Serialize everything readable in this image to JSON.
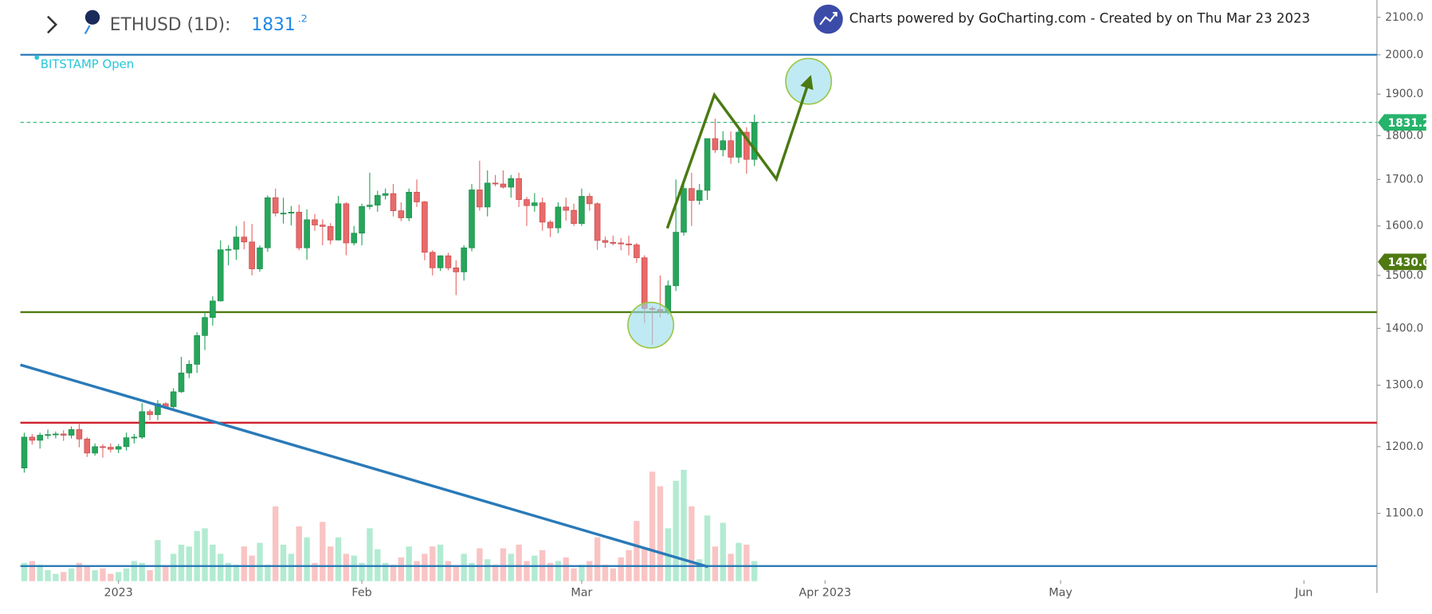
{
  "chart_data": {
    "type": "candlestick",
    "title": "ETHUSD (1D):",
    "price_text": "1831",
    "price_decimals": ".2",
    "exchange_label": "BITSTAMP Open",
    "attribution": "Charts powered by GoCharting.com - Created by  on Thu Mar 23 2023",
    "log_scale": true,
    "ylim": [
      1007,
      2148
    ],
    "yticks": [
      {
        "value": 2100,
        "label": "2100.0"
      },
      {
        "value": 2000,
        "label": "2000.0"
      },
      {
        "value": 1900,
        "label": "1900.0"
      },
      {
        "value": 1800,
        "label": "1800.0"
      },
      {
        "value": 1700,
        "label": "1700.0"
      },
      {
        "value": 1600,
        "label": "1600.0"
      },
      {
        "value": 1500,
        "label": "1500.0"
      },
      {
        "value": 1400,
        "label": "1400.0"
      },
      {
        "value": 1300,
        "label": "1300.0"
      },
      {
        "value": 1200,
        "label": "1200.0"
      },
      {
        "value": 1100,
        "label": "1100.0"
      }
    ],
    "xlim": [
      -0.5,
      172.3
    ],
    "xticks": [
      {
        "value": 12,
        "label": "2023"
      },
      {
        "value": 43,
        "label": "Feb"
      },
      {
        "value": 71,
        "label": "Mar"
      },
      {
        "value": 102,
        "label": "Apr 2023"
      },
      {
        "value": 132,
        "label": "May"
      },
      {
        "value": 163,
        "label": "Jun"
      }
    ],
    "colors": {
      "up": "#26a65b",
      "down": "#e86a6a",
      "up_volume": "#b2ebd2",
      "down_volume": "#f9c4c4"
    },
    "open": [
      1167,
      1215,
      1210,
      1218,
      1219,
      1220,
      1218,
      1227,
      1212,
      1190,
      1200,
      1199,
      1196,
      1200,
      1214,
      1215,
      1256,
      1251,
      1269,
      1264,
      1289,
      1321,
      1336,
      1387,
      1420,
      1451,
      1551,
      1552,
      1577,
      1567,
      1513,
      1555,
      1660,
      1627,
      1627,
      1629,
      1555,
      1613,
      1602,
      1599,
      1571,
      1647,
      1565,
      1585,
      1641,
      1644,
      1665,
      1669,
      1632,
      1617,
      1672,
      1651,
      1546,
      1515,
      1539,
      1515,
      1507,
      1555,
      1677,
      1640,
      1692,
      1690,
      1683,
      1702,
      1656,
      1643,
      1649,
      1608,
      1596,
      1640,
      1633,
      1605,
      1663,
      1647,
      1570,
      1566,
      1565,
      1563,
      1561,
      1535,
      1437,
      1435,
      1432,
      1480,
      1587,
      1680,
      1654,
      1676,
      1793,
      1767,
      1788,
      1750,
      1808,
      1745
    ],
    "high": [
      1222,
      1220,
      1222,
      1227,
      1224,
      1226,
      1232,
      1237,
      1215,
      1205,
      1204,
      1205,
      1204,
      1222,
      1220,
      1270,
      1260,
      1275,
      1272,
      1295,
      1349,
      1343,
      1393,
      1430,
      1460,
      1570,
      1560,
      1600,
      1610,
      1604,
      1560,
      1665,
      1680,
      1660,
      1642,
      1645,
      1635,
      1625,
      1614,
      1606,
      1664,
      1650,
      1600,
      1647,
      1715,
      1675,
      1680,
      1690,
      1650,
      1680,
      1700,
      1653,
      1550,
      1540,
      1545,
      1530,
      1560,
      1690,
      1742,
      1720,
      1710,
      1720,
      1710,
      1715,
      1662,
      1670,
      1660,
      1612,
      1650,
      1660,
      1647,
      1680,
      1670,
      1650,
      1578,
      1580,
      1575,
      1580,
      1565,
      1540,
      1441,
      1500,
      1490,
      1700,
      1700,
      1715,
      1690,
      1790,
      1840,
      1810,
      1810,
      1820,
      1820,
      1850
    ],
    "low": [
      1160,
      1203,
      1197,
      1212,
      1213,
      1209,
      1213,
      1199,
      1184,
      1186,
      1183,
      1191,
      1190,
      1194,
      1205,
      1212,
      1242,
      1242,
      1260,
      1261,
      1287,
      1312,
      1321,
      1361,
      1405,
      1450,
      1520,
      1531,
      1552,
      1500,
      1507,
      1547,
      1620,
      1605,
      1601,
      1550,
      1531,
      1590,
      1560,
      1562,
      1570,
      1540,
      1560,
      1560,
      1635,
      1630,
      1656,
      1620,
      1610,
      1610,
      1640,
      1530,
      1500,
      1509,
      1510,
      1462,
      1490,
      1548,
      1632,
      1620,
      1685,
      1680,
      1660,
      1640,
      1600,
      1630,
      1590,
      1577,
      1585,
      1611,
      1600,
      1600,
      1632,
      1551,
      1555,
      1560,
      1550,
      1540,
      1525,
      1410,
      1370,
      1420,
      1425,
      1470,
      1580,
      1600,
      1645,
      1655,
      1760,
      1752,
      1735,
      1737,
      1713,
      1730
    ],
    "close": [
      1215,
      1210,
      1218,
      1219,
      1220,
      1218,
      1227,
      1212,
      1190,
      1200,
      1199,
      1196,
      1200,
      1214,
      1215,
      1256,
      1251,
      1269,
      1264,
      1289,
      1321,
      1336,
      1387,
      1420,
      1451,
      1551,
      1552,
      1577,
      1567,
      1513,
      1555,
      1660,
      1627,
      1627,
      1629,
      1555,
      1613,
      1602,
      1599,
      1571,
      1647,
      1565,
      1585,
      1641,
      1644,
      1665,
      1669,
      1632,
      1617,
      1672,
      1651,
      1546,
      1515,
      1539,
      1515,
      1507,
      1555,
      1677,
      1640,
      1692,
      1690,
      1683,
      1702,
      1656,
      1643,
      1649,
      1608,
      1596,
      1640,
      1633,
      1605,
      1663,
      1647,
      1570,
      1566,
      1565,
      1563,
      1561,
      1535,
      1437,
      1435,
      1432,
      1480,
      1587,
      1680,
      1654,
      1676,
      1793,
      1767,
      1788,
      1750,
      1808,
      1745,
      1831.2
    ],
    "volume": [
      20,
      22,
      18,
      12,
      8,
      10,
      14,
      20,
      16,
      12,
      14,
      8,
      10,
      14,
      22,
      20,
      12,
      45,
      16,
      30,
      40,
      38,
      55,
      58,
      40,
      30,
      20,
      18,
      38,
      28,
      42,
      18,
      82,
      40,
      30,
      60,
      48,
      20,
      65,
      38,
      48,
      30,
      28,
      20,
      58,
      35,
      20,
      18,
      26,
      38,
      22,
      30,
      38,
      40,
      22,
      16,
      30,
      20,
      36,
      24,
      18,
      36,
      30,
      40,
      22,
      28,
      34,
      20,
      22,
      26,
      14,
      18,
      22,
      48,
      18,
      14,
      26,
      34,
      66,
      35,
      120,
      104,
      58,
      110,
      122,
      82,
      24,
      72,
      38,
      64,
      30,
      42,
      40,
      22
    ],
    "hlines": [
      {
        "value": 2000,
        "color": "#2a7ab8"
      },
      {
        "value": 1430,
        "color": "#4f7a12"
      },
      {
        "value": 1238,
        "color": "#d0202a"
      },
      {
        "value": 1027,
        "color": "#2a7ab8"
      }
    ],
    "price_tags": [
      {
        "value": 1831.2,
        "label": "1831.2",
        "color": "#26b36b"
      },
      {
        "value": 1430,
        "label": "1430.0",
        "color": "#4f7a12"
      }
    ],
    "trendline": {
      "x": [
        -0.5,
        87.1
      ],
      "y": [
        1335,
        1026
      ],
      "color": "#2a7ab8"
    },
    "zigzag": {
      "x": [
        81.9,
        87.9,
        95.8,
        100.0
      ],
      "y": [
        1595,
        1898,
        1701,
        1935
      ],
      "color": "#4a7a12"
    },
    "circles": [
      {
        "x": 79.8,
        "y": 1406
      },
      {
        "x": 99.9,
        "y": 1932
      }
    ]
  }
}
